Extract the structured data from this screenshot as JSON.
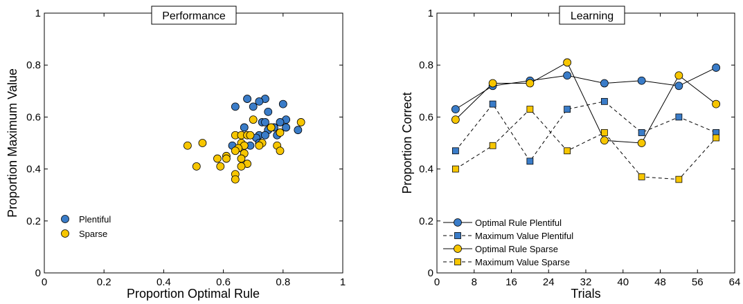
{
  "colors": {
    "plentiful": "#3a7cc8",
    "sparse": "#f7c600"
  },
  "chart_data": [
    {
      "type": "scatter",
      "title": "Performance",
      "xlabel": "Proportion Optimal Rule",
      "ylabel": "Proportion Maximum Value",
      "xlim": [
        0,
        1
      ],
      "ylim": [
        0,
        1
      ],
      "xticks": [
        "0",
        "0.2",
        "0.4",
        "0.6",
        "0.8",
        "1"
      ],
      "yticks": [
        "0",
        "0.2",
        "0.4",
        "0.6",
        "0.8",
        "1"
      ],
      "legend": "bottom-left",
      "series": [
        {
          "name": "Plentiful",
          "points": [
            [
              0.64,
              0.64
            ],
            [
              0.68,
              0.67
            ],
            [
              0.74,
              0.67
            ],
            [
              0.72,
              0.66
            ],
            [
              0.8,
              0.65
            ],
            [
              0.7,
              0.64
            ],
            [
              0.75,
              0.62
            ],
            [
              0.81,
              0.59
            ],
            [
              0.67,
              0.56
            ],
            [
              0.73,
              0.58
            ],
            [
              0.74,
              0.58
            ],
            [
              0.79,
              0.58
            ],
            [
              0.77,
              0.56
            ],
            [
              0.81,
              0.56
            ],
            [
              0.75,
              0.55
            ],
            [
              0.85,
              0.55
            ],
            [
              0.72,
              0.53
            ],
            [
              0.74,
              0.53
            ],
            [
              0.78,
              0.53
            ],
            [
              0.71,
              0.52
            ],
            [
              0.63,
              0.49
            ],
            [
              0.67,
              0.49
            ],
            [
              0.69,
              0.49
            ],
            [
              0.72,
              0.5
            ]
          ]
        },
        {
          "name": "Sparse",
          "points": [
            [
              0.86,
              0.58
            ],
            [
              0.76,
              0.56
            ],
            [
              0.7,
              0.59
            ],
            [
              0.64,
              0.53
            ],
            [
              0.66,
              0.53
            ],
            [
              0.68,
              0.53
            ],
            [
              0.69,
              0.53
            ],
            [
              0.79,
              0.54
            ],
            [
              0.53,
              0.5
            ],
            [
              0.66,
              0.5
            ],
            [
              0.73,
              0.5
            ],
            [
              0.48,
              0.49
            ],
            [
              0.67,
              0.49
            ],
            [
              0.65,
              0.48
            ],
            [
              0.72,
              0.49
            ],
            [
              0.78,
              0.49
            ],
            [
              0.79,
              0.47
            ],
            [
              0.61,
              0.45
            ],
            [
              0.64,
              0.47
            ],
            [
              0.67,
              0.46
            ],
            [
              0.58,
              0.44
            ],
            [
              0.61,
              0.44
            ],
            [
              0.66,
              0.44
            ],
            [
              0.68,
              0.42
            ],
            [
              0.51,
              0.41
            ],
            [
              0.59,
              0.41
            ],
            [
              0.66,
              0.41
            ],
            [
              0.64,
              0.38
            ],
            [
              0.64,
              0.36
            ]
          ]
        }
      ]
    },
    {
      "type": "line",
      "title": "Learning",
      "xlabel": "Trials",
      "ylabel": "Proportion Correct",
      "xlim": [
        0,
        64
      ],
      "ylim": [
        0,
        1
      ],
      "xticks": [
        "0",
        "8",
        "16",
        "24",
        "32",
        "40",
        "48",
        "56",
        "64"
      ],
      "yticks": [
        "0",
        "0.2",
        "0.4",
        "0.6",
        "0.8",
        "1"
      ],
      "legend": "bottom-left",
      "x": [
        4,
        12,
        20,
        28,
        36,
        44,
        52,
        60
      ],
      "series": [
        {
          "name": "Optimal Rule Plentiful",
          "values": [
            0.63,
            0.72,
            0.74,
            0.76,
            0.73,
            0.74,
            0.72,
            0.79
          ]
        },
        {
          "name": "Maximum Value Plentiful",
          "values": [
            0.47,
            0.65,
            0.43,
            0.63,
            0.66,
            0.54,
            0.6,
            0.54
          ]
        },
        {
          "name": "Optimal Rule Sparse",
          "values": [
            0.59,
            0.73,
            0.73,
            0.81,
            0.51,
            0.5,
            0.76,
            0.65
          ]
        },
        {
          "name": "Maximum Value Sparse",
          "values": [
            0.4,
            0.49,
            0.63,
            0.47,
            0.54,
            0.37,
            0.36,
            0.52
          ]
        }
      ]
    }
  ]
}
